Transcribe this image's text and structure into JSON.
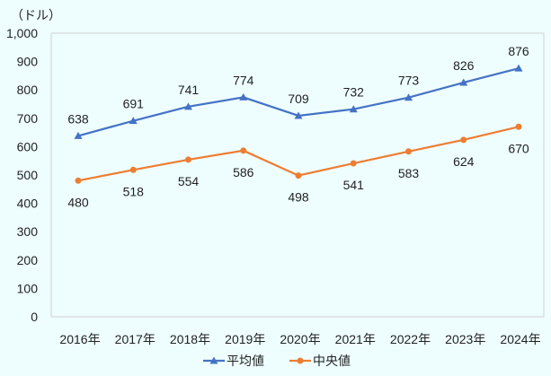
{
  "chart_data": {
    "type": "line",
    "unit_label": "（ドル）",
    "categories": [
      "2016年",
      "2017年",
      "2018年",
      "2019年",
      "2020年",
      "2021年",
      "2022年",
      "2023年",
      "2024年"
    ],
    "ylim": [
      0,
      1000
    ],
    "yticks": [
      0,
      100,
      200,
      300,
      400,
      500,
      600,
      700,
      800,
      900,
      1000
    ],
    "ytick_labels": [
      "0",
      "100",
      "200",
      "300",
      "400",
      "500",
      "600",
      "700",
      "800",
      "900",
      "1,000"
    ],
    "grid": false,
    "legend_position": "bottom",
    "series": [
      {
        "name": "平均値",
        "color": "#4472c4",
        "marker": "triangle",
        "values": [
          638,
          691,
          741,
          774,
          709,
          732,
          773,
          826,
          876
        ],
        "label_position": "above"
      },
      {
        "name": "中央値",
        "color": "#ed7d31",
        "marker": "circle",
        "values": [
          480,
          518,
          554,
          586,
          498,
          541,
          583,
          624,
          670
        ],
        "label_position": "below"
      }
    ]
  }
}
